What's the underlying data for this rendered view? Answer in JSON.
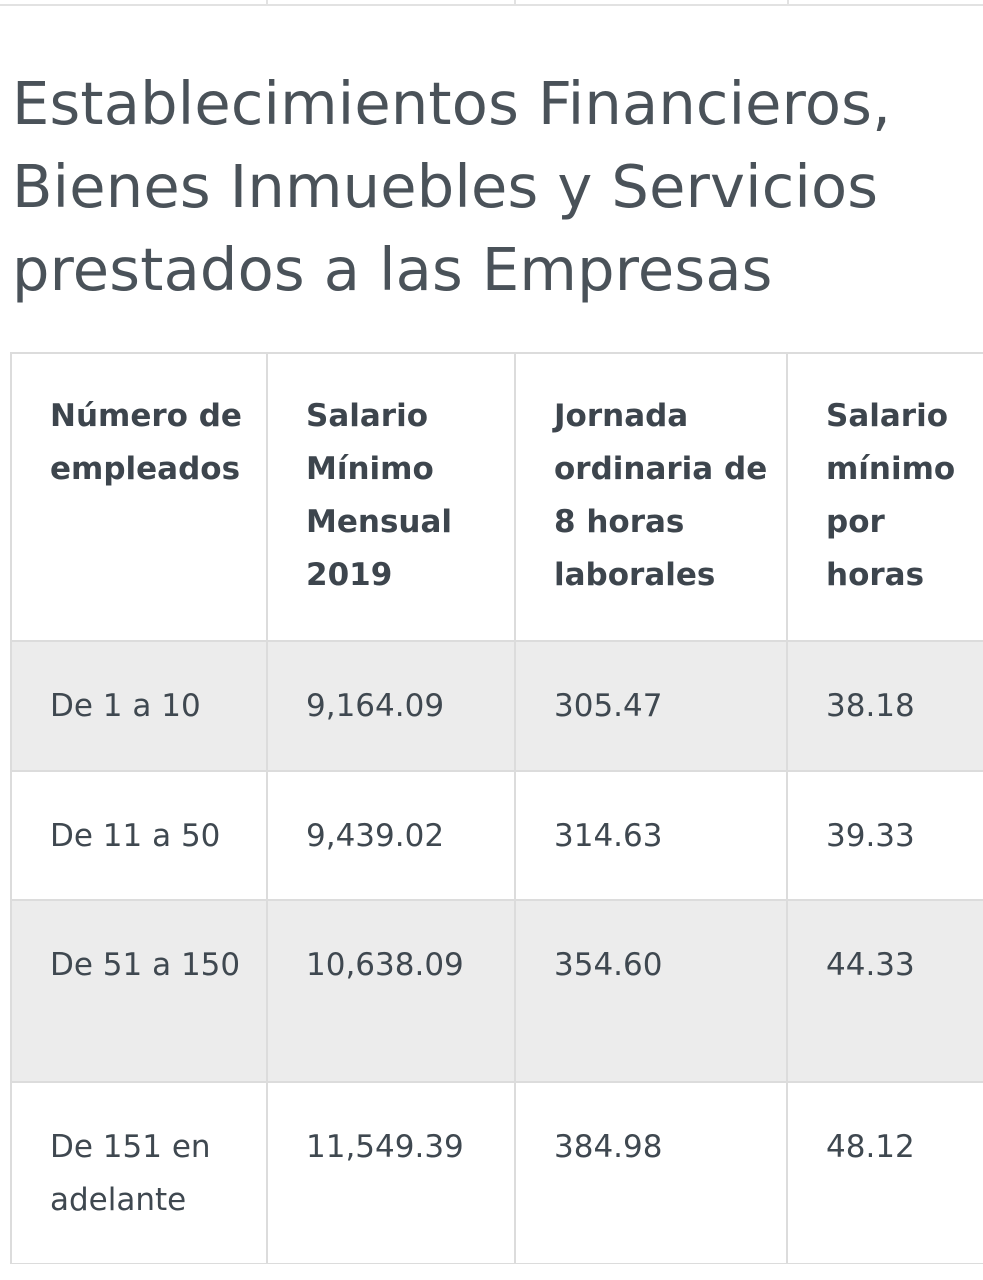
{
  "title": "Establecimientos Financieros, Bienes Inmuebles y Servicios prestados a las Empresas",
  "table": {
    "headers": [
      "Número de empleados",
      "Salario Mínimo Mensual 2019",
      "Jornada ordinaria de 8 horas laborales",
      "Salario mínimo por horas"
    ],
    "rows": [
      [
        "De 1 a 10",
        "9,164.09",
        "305.47",
        "38.18"
      ],
      [
        "De 11 a 50",
        "9,439.02",
        "314.63",
        "39.33"
      ],
      [
        "De 51 a 150",
        "10,638.09",
        "354.60",
        "44.33"
      ],
      [
        "De 151 en adelante",
        "11,549.39",
        "384.98",
        "48.12"
      ]
    ]
  },
  "colors": {
    "text": "#414a52",
    "row_shade": "#ececec",
    "border": "#dcdcdc"
  }
}
